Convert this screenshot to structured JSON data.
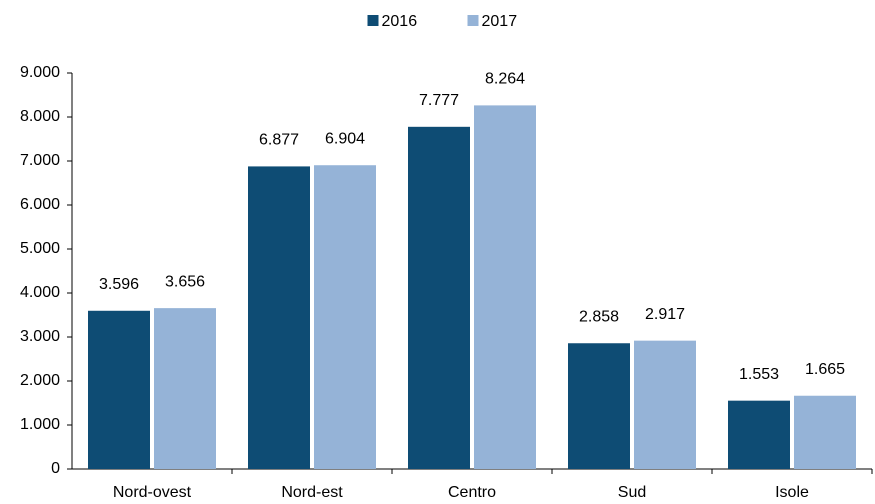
{
  "chart_data": {
    "type": "bar",
    "categories": [
      "Nord-ovest",
      "Nord-est",
      "Centro",
      "Sud",
      "Isole"
    ],
    "series": [
      {
        "name": "2016",
        "color": "#0e4c74",
        "values": [
          3596,
          6877,
          7777,
          2858,
          1553
        ],
        "value_labels": [
          "3.596",
          "6.877",
          "7.777",
          "2.858",
          "1.553"
        ]
      },
      {
        "name": "2017",
        "color": "#95b3d7",
        "values": [
          3656,
          6904,
          8264,
          2917,
          1665
        ],
        "value_labels": [
          "3.656",
          "6.904",
          "8.264",
          "2.917",
          "1.665"
        ]
      }
    ],
    "ylim": [
      0,
      9000
    ],
    "yticks": [
      0,
      {
        "value": 1000,
        "label": "1.000"
      },
      {
        "value": 2000,
        "label": "2.000"
      },
      {
        "value": 3000,
        "label": "3.000"
      },
      {
        "value": 4000,
        "label": "4.000"
      },
      {
        "value": 5000,
        "label": "5.000"
      },
      {
        "value": 6000,
        "label": "6.000"
      },
      {
        "value": 7000,
        "label": "7.000"
      },
      {
        "value": 8000,
        "label": "8.000"
      },
      {
        "value": 9000,
        "label": "9.000"
      }
    ],
    "grid": false,
    "legend": "top"
  }
}
